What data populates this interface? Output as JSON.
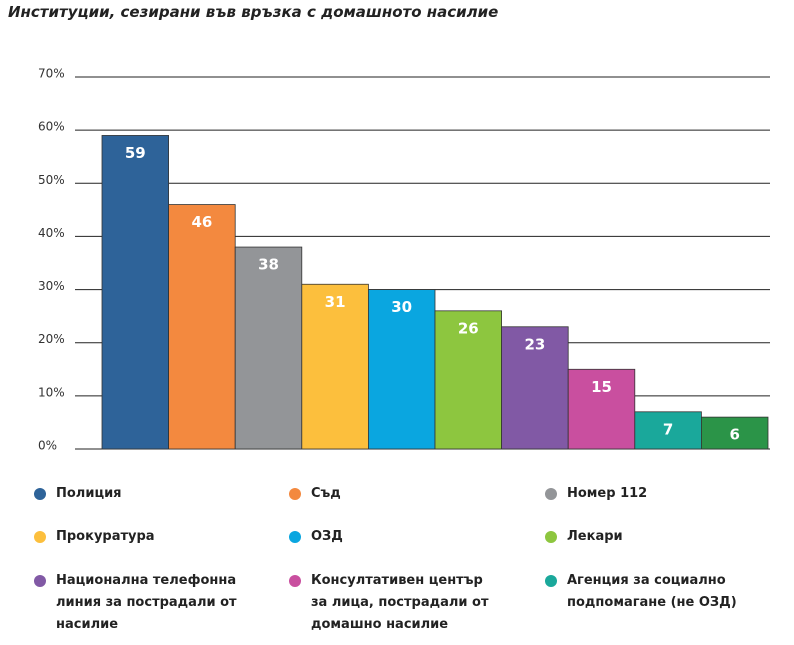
{
  "chart_data": {
    "type": "bar",
    "title": "Институции, сезирани във връзка с домашното насилие",
    "categories": [
      "Полиция",
      "Съд",
      "Номер 112",
      "Прокуратура",
      "ОЗД",
      "Лекари",
      "Национална телефонна линия за пострадали от насилие",
      "Консултативен център за лица, пострадали от домашно насилие",
      "Агенция за социално подпомагане (не ОЗД)",
      null
    ],
    "values": [
      59,
      46,
      38,
      31,
      30,
      26,
      23,
      15,
      7,
      6
    ],
    "colors": [
      "#2e6399",
      "#f3893f",
      "#939598",
      "#fcbf3d",
      "#0aa6e0",
      "#8dc63f",
      "#8159a5",
      "#c94f9f",
      "#1aa89b",
      "#2b9448"
    ],
    "ylim": [
      0,
      70
    ],
    "yticks": [
      {
        "value": 0,
        "label": "0%"
      },
      {
        "value": 10,
        "label": "10%"
      },
      {
        "value": 20,
        "label": "20%"
      },
      {
        "value": 30,
        "label": "30%"
      },
      {
        "value": 40,
        "label": "40%"
      },
      {
        "value": 50,
        "label": "50%"
      },
      {
        "value": 60,
        "label": "60%"
      },
      {
        "value": 70,
        "label": "70%"
      }
    ],
    "grid": true
  }
}
